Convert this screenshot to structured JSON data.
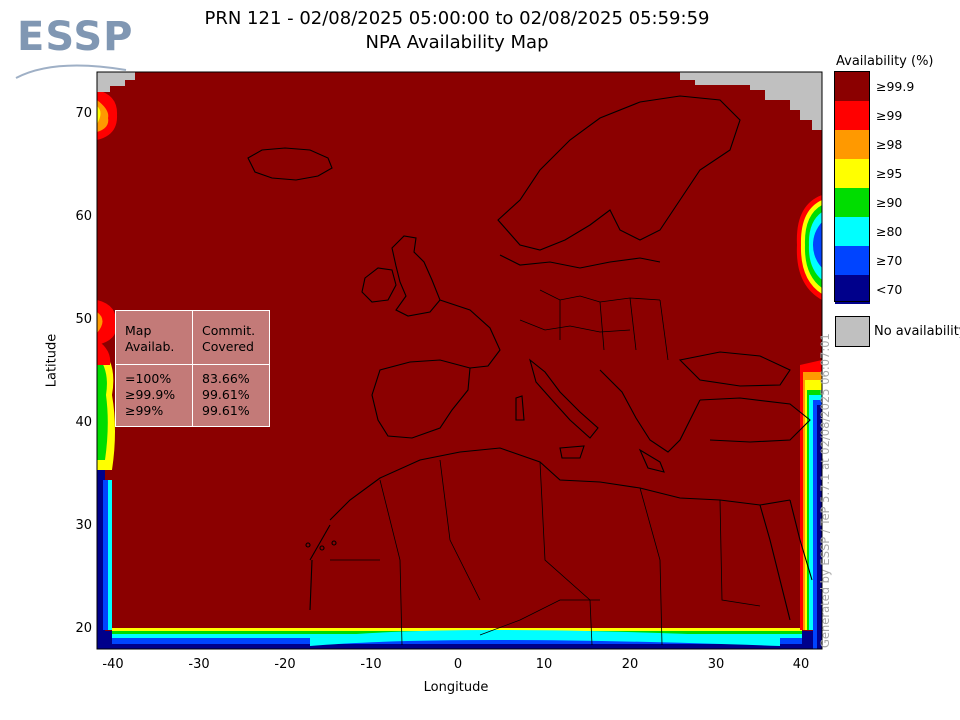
{
  "logo": {
    "text": "ESSP"
  },
  "title": {
    "line1": "PRN 121 - 02/08/2025 05:00:00 to 02/08/2025 05:59:59",
    "line2": "NPA Availability Map"
  },
  "map": {
    "xlabel": "Longitude",
    "ylabel": "Latitude",
    "xlim": [
      -42,
      41
    ],
    "ylim": [
      18,
      74
    ],
    "xticks": [
      "-40",
      "-30",
      "-20",
      "-10",
      "0",
      "10",
      "20",
      "30",
      "40"
    ],
    "yticks": [
      "70",
      "60",
      "50",
      "40",
      "30",
      "20"
    ],
    "background_color": "#8b0000",
    "outline_color": "#000000",
    "no_availability_color": "#c0c0c0"
  },
  "stats": {
    "col1_header": [
      "Map",
      "Availab."
    ],
    "col2_header": [
      "Commit.",
      "Covered"
    ],
    "rows": [
      {
        "label": "=100%",
        "value": "83.66%"
      },
      {
        "label": "≥99.9%",
        "value": "99.61%"
      },
      {
        "label": "≥99%",
        "value": "99.61%"
      }
    ]
  },
  "legend": {
    "title": "Availability (%)",
    "items": [
      {
        "label": "≥99.9",
        "color": "#8b0000"
      },
      {
        "label": "≥99",
        "color": "#ff0000"
      },
      {
        "label": "≥98",
        "color": "#ff9900"
      },
      {
        "label": "≥95",
        "color": "#ffff00"
      },
      {
        "label": "≥90",
        "color": "#00dd00"
      },
      {
        "label": "≥80",
        "color": "#00ffff"
      },
      {
        "label": "≥70",
        "color": "#0044ff"
      },
      {
        "label": "<70",
        "color": "#00008b"
      }
    ],
    "no_availability_label": "No availability"
  },
  "credit": "Generated by ESSP / TeP 5.7.1 at 02/08/2025 06:07:01"
}
